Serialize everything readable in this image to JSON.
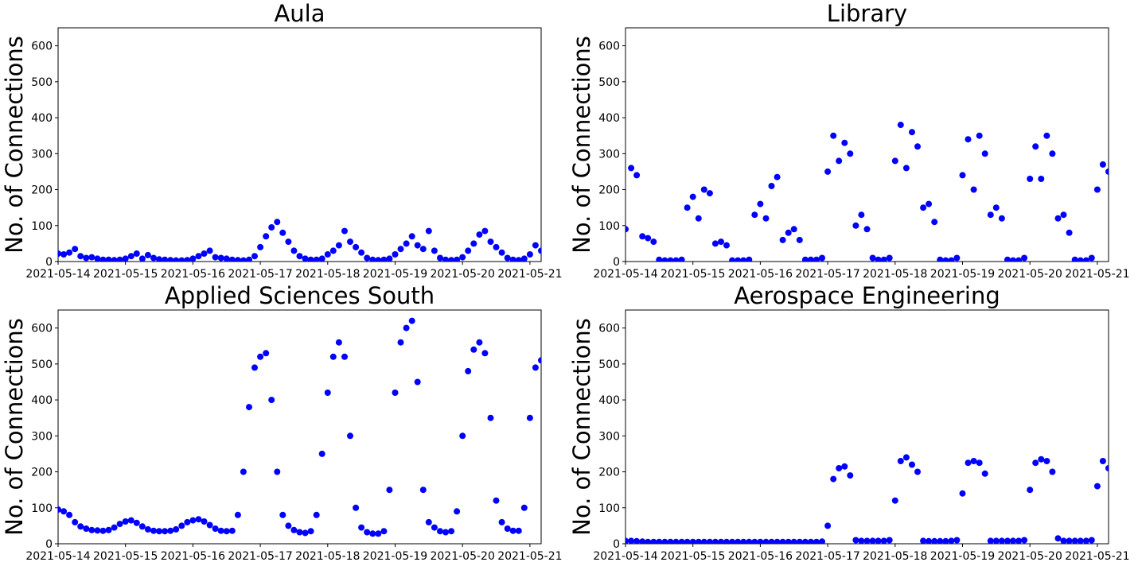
{
  "colors": {
    "points": "#0000ff",
    "axes": "#000000",
    "background": "#ffffff"
  },
  "chart_data": [
    {
      "type": "scatter",
      "title": "Aula",
      "ylabel": "No. of Connections",
      "xlim": [
        "2021-05-14T00:00",
        "2021-05-21T04:00"
      ],
      "ylim": [
        0,
        650
      ],
      "x_ticks": [
        "2021-05-14",
        "2021-05-15",
        "2021-05-16",
        "2021-05-17",
        "2021-05-18",
        "2021-05-19",
        "2021-05-20",
        "2021-05-21"
      ],
      "y_ticks": [
        0,
        100,
        200,
        300,
        400,
        500,
        600
      ],
      "series": [
        {
          "x": [
            "2021-05-14T00:00",
            "2021-05-14T02:00",
            "2021-05-14T04:00",
            "2021-05-14T06:00",
            "2021-05-14T08:00",
            "2021-05-14T10:00",
            "2021-05-14T12:00",
            "2021-05-14T14:00",
            "2021-05-14T16:00",
            "2021-05-14T18:00",
            "2021-05-14T20:00",
            "2021-05-14T22:00",
            "2021-05-15T00:00",
            "2021-05-15T02:00",
            "2021-05-15T04:00",
            "2021-05-15T06:00",
            "2021-05-15T08:00",
            "2021-05-15T10:00",
            "2021-05-15T12:00",
            "2021-05-15T14:00",
            "2021-05-15T16:00",
            "2021-05-15T18:00",
            "2021-05-15T20:00",
            "2021-05-15T22:00",
            "2021-05-16T00:00",
            "2021-05-16T02:00",
            "2021-05-16T04:00",
            "2021-05-16T06:00",
            "2021-05-16T08:00",
            "2021-05-16T10:00",
            "2021-05-16T12:00",
            "2021-05-16T14:00",
            "2021-05-16T16:00",
            "2021-05-16T18:00",
            "2021-05-16T20:00",
            "2021-05-16T22:00",
            "2021-05-17T00:00",
            "2021-05-17T02:00",
            "2021-05-17T04:00",
            "2021-05-17T06:00",
            "2021-05-17T08:00",
            "2021-05-17T10:00",
            "2021-05-17T12:00",
            "2021-05-17T14:00",
            "2021-05-17T16:00",
            "2021-05-17T18:00",
            "2021-05-17T20:00",
            "2021-05-17T22:00",
            "2021-05-18T00:00",
            "2021-05-18T02:00",
            "2021-05-18T04:00",
            "2021-05-18T06:00",
            "2021-05-18T08:00",
            "2021-05-18T10:00",
            "2021-05-18T12:00",
            "2021-05-18T14:00",
            "2021-05-18T16:00",
            "2021-05-18T18:00",
            "2021-05-18T20:00",
            "2021-05-18T22:00",
            "2021-05-19T00:00",
            "2021-05-19T02:00",
            "2021-05-19T04:00",
            "2021-05-19T06:00",
            "2021-05-19T08:00",
            "2021-05-19T10:00",
            "2021-05-19T12:00",
            "2021-05-19T14:00",
            "2021-05-19T16:00",
            "2021-05-19T18:00",
            "2021-05-19T20:00",
            "2021-05-19T22:00",
            "2021-05-20T00:00",
            "2021-05-20T02:00",
            "2021-05-20T04:00",
            "2021-05-20T06:00",
            "2021-05-20T08:00",
            "2021-05-20T10:00",
            "2021-05-20T12:00",
            "2021-05-20T14:00",
            "2021-05-20T16:00",
            "2021-05-20T18:00",
            "2021-05-20T20:00",
            "2021-05-20T22:00",
            "2021-05-21T00:00",
            "2021-05-21T02:00",
            "2021-05-21T04:00"
          ],
          "y": [
            22,
            20,
            25,
            35,
            15,
            10,
            12,
            8,
            5,
            5,
            4,
            5,
            8,
            15,
            22,
            8,
            18,
            10,
            6,
            5,
            4,
            3,
            3,
            4,
            8,
            15,
            22,
            30,
            12,
            10,
            8,
            5,
            4,
            3,
            5,
            15,
            40,
            70,
            95,
            110,
            80,
            55,
            30,
            15,
            8,
            5,
            5,
            8,
            20,
            30,
            45,
            85,
            55,
            40,
            25,
            10,
            5,
            4,
            5,
            8,
            20,
            35,
            50,
            70,
            45,
            35,
            85,
            30,
            10,
            5,
            4,
            5,
            12,
            30,
            50,
            75,
            85,
            55,
            40,
            25,
            10,
            5,
            4,
            8,
            20,
            45,
            30
          ]
        }
      ]
    },
    {
      "type": "scatter",
      "title": "Library",
      "ylabel": "No. of Connections",
      "xlim": [
        "2021-05-14T00:00",
        "2021-05-21T04:00"
      ],
      "ylim": [
        0,
        650
      ],
      "x_ticks": [
        "2021-05-14",
        "2021-05-15",
        "2021-05-16",
        "2021-05-17",
        "2021-05-18",
        "2021-05-19",
        "2021-05-20",
        "2021-05-21"
      ],
      "y_ticks": [
        0,
        100,
        200,
        300,
        400,
        500,
        600
      ],
      "series": [
        {
          "x": [
            "2021-05-14T00:00",
            "2021-05-14T02:00",
            "2021-05-14T04:00",
            "2021-05-14T06:00",
            "2021-05-14T08:00",
            "2021-05-14T10:00",
            "2021-05-14T12:00",
            "2021-05-14T14:00",
            "2021-05-14T16:00",
            "2021-05-14T18:00",
            "2021-05-14T20:00",
            "2021-05-14T22:00",
            "2021-05-15T00:00",
            "2021-05-15T02:00",
            "2021-05-15T04:00",
            "2021-05-15T06:00",
            "2021-05-15T08:00",
            "2021-05-15T10:00",
            "2021-05-15T12:00",
            "2021-05-15T14:00",
            "2021-05-15T16:00",
            "2021-05-15T18:00",
            "2021-05-15T20:00",
            "2021-05-15T22:00",
            "2021-05-16T00:00",
            "2021-05-16T02:00",
            "2021-05-16T04:00",
            "2021-05-16T06:00",
            "2021-05-16T08:00",
            "2021-05-16T10:00",
            "2021-05-16T12:00",
            "2021-05-16T14:00",
            "2021-05-16T16:00",
            "2021-05-16T18:00",
            "2021-05-16T20:00",
            "2021-05-16T22:00",
            "2021-05-17T00:00",
            "2021-05-17T02:00",
            "2021-05-17T04:00",
            "2021-05-17T06:00",
            "2021-05-17T08:00",
            "2021-05-17T10:00",
            "2021-05-17T12:00",
            "2021-05-17T14:00",
            "2021-05-17T16:00",
            "2021-05-17T18:00",
            "2021-05-17T20:00",
            "2021-05-17T22:00",
            "2021-05-18T00:00",
            "2021-05-18T02:00",
            "2021-05-18T04:00",
            "2021-05-18T06:00",
            "2021-05-18T08:00",
            "2021-05-18T10:00",
            "2021-05-18T12:00",
            "2021-05-18T14:00",
            "2021-05-18T16:00",
            "2021-05-18T18:00",
            "2021-05-18T20:00",
            "2021-05-18T22:00",
            "2021-05-19T00:00",
            "2021-05-19T02:00",
            "2021-05-19T04:00",
            "2021-05-19T06:00",
            "2021-05-19T08:00",
            "2021-05-19T10:00",
            "2021-05-19T12:00",
            "2021-05-19T14:00",
            "2021-05-19T16:00",
            "2021-05-19T18:00",
            "2021-05-19T20:00",
            "2021-05-19T22:00",
            "2021-05-20T00:00",
            "2021-05-20T02:00",
            "2021-05-20T04:00",
            "2021-05-20T06:00",
            "2021-05-20T08:00",
            "2021-05-20T10:00",
            "2021-05-20T12:00",
            "2021-05-20T14:00",
            "2021-05-20T16:00",
            "2021-05-20T18:00",
            "2021-05-20T20:00",
            "2021-05-20T22:00",
            "2021-05-21T00:00",
            "2021-05-21T02:00",
            "2021-05-21T04:00"
          ],
          "y": [
            90,
            260,
            240,
            70,
            65,
            55,
            5,
            3,
            3,
            3,
            5,
            150,
            180,
            120,
            200,
            190,
            50,
            55,
            45,
            3,
            3,
            3,
            5,
            130,
            160,
            120,
            210,
            235,
            60,
            80,
            90,
            60,
            5,
            5,
            5,
            10,
            250,
            350,
            280,
            330,
            300,
            100,
            130,
            90,
            10,
            5,
            5,
            10,
            280,
            380,
            260,
            360,
            320,
            150,
            160,
            110,
            5,
            3,
            3,
            10,
            240,
            340,
            200,
            350,
            300,
            130,
            150,
            120,
            5,
            3,
            3,
            10,
            230,
            320,
            230,
            350,
            300,
            120,
            130,
            80,
            5,
            3,
            3,
            10,
            200,
            270,
            250
          ]
        }
      ]
    },
    {
      "type": "scatter",
      "title": "Applied Sciences South",
      "ylabel": "No. of Connections",
      "xlim": [
        "2021-05-14T00:00",
        "2021-05-21T04:00"
      ],
      "ylim": [
        0,
        650
      ],
      "x_ticks": [
        "2021-05-14",
        "2021-05-15",
        "2021-05-16",
        "2021-05-17",
        "2021-05-18",
        "2021-05-19",
        "2021-05-20",
        "2021-05-21"
      ],
      "y_ticks": [
        0,
        100,
        200,
        300,
        400,
        500,
        600
      ],
      "series": [
        {
          "x": [
            "2021-05-14T00:00",
            "2021-05-14T02:00",
            "2021-05-14T04:00",
            "2021-05-14T06:00",
            "2021-05-14T08:00",
            "2021-05-14T10:00",
            "2021-05-14T12:00",
            "2021-05-14T14:00",
            "2021-05-14T16:00",
            "2021-05-14T18:00",
            "2021-05-14T20:00",
            "2021-05-14T22:00",
            "2021-05-15T00:00",
            "2021-05-15T02:00",
            "2021-05-15T04:00",
            "2021-05-15T06:00",
            "2021-05-15T08:00",
            "2021-05-15T10:00",
            "2021-05-15T12:00",
            "2021-05-15T14:00",
            "2021-05-15T16:00",
            "2021-05-15T18:00",
            "2021-05-15T20:00",
            "2021-05-15T22:00",
            "2021-05-16T00:00",
            "2021-05-16T02:00",
            "2021-05-16T04:00",
            "2021-05-16T06:00",
            "2021-05-16T08:00",
            "2021-05-16T10:00",
            "2021-05-16T12:00",
            "2021-05-16T14:00",
            "2021-05-16T16:00",
            "2021-05-16T18:00",
            "2021-05-16T20:00",
            "2021-05-16T22:00",
            "2021-05-17T00:00",
            "2021-05-17T02:00",
            "2021-05-17T04:00",
            "2021-05-17T06:00",
            "2021-05-17T08:00",
            "2021-05-17T10:00",
            "2021-05-17T12:00",
            "2021-05-17T14:00",
            "2021-05-17T16:00",
            "2021-05-17T18:00",
            "2021-05-17T20:00",
            "2021-05-17T22:00",
            "2021-05-18T00:00",
            "2021-05-18T02:00",
            "2021-05-18T04:00",
            "2021-05-18T06:00",
            "2021-05-18T08:00",
            "2021-05-18T10:00",
            "2021-05-18T12:00",
            "2021-05-18T14:00",
            "2021-05-18T16:00",
            "2021-05-18T18:00",
            "2021-05-18T20:00",
            "2021-05-18T22:00",
            "2021-05-19T00:00",
            "2021-05-19T02:00",
            "2021-05-19T04:00",
            "2021-05-19T06:00",
            "2021-05-19T08:00",
            "2021-05-19T10:00",
            "2021-05-19T12:00",
            "2021-05-19T14:00",
            "2021-05-19T16:00",
            "2021-05-19T18:00",
            "2021-05-19T20:00",
            "2021-05-19T22:00",
            "2021-05-20T00:00",
            "2021-05-20T02:00",
            "2021-05-20T04:00",
            "2021-05-20T06:00",
            "2021-05-20T08:00",
            "2021-05-20T10:00",
            "2021-05-20T12:00",
            "2021-05-20T14:00",
            "2021-05-20T16:00",
            "2021-05-20T18:00",
            "2021-05-20T20:00",
            "2021-05-20T22:00",
            "2021-05-21T00:00",
            "2021-05-21T02:00",
            "2021-05-21T04:00"
          ],
          "y": [
            95,
            90,
            80,
            60,
            48,
            42,
            38,
            37,
            36,
            38,
            45,
            55,
            62,
            65,
            58,
            48,
            40,
            36,
            35,
            35,
            36,
            40,
            50,
            60,
            65,
            68,
            62,
            52,
            42,
            36,
            35,
            36,
            80,
            200,
            380,
            490,
            520,
            530,
            400,
            200,
            80,
            50,
            38,
            32,
            30,
            35,
            80,
            250,
            420,
            520,
            560,
            520,
            300,
            100,
            45,
            32,
            28,
            28,
            35,
            150,
            420,
            560,
            600,
            620,
            450,
            150,
            60,
            45,
            35,
            32,
            35,
            90,
            300,
            480,
            540,
            560,
            530,
            350,
            120,
            60,
            42,
            36,
            36,
            100,
            350,
            490,
            510
          ]
        }
      ]
    },
    {
      "type": "scatter",
      "title": "Aerospace Engineering",
      "ylabel": "No. of Connections",
      "xlim": [
        "2021-05-14T00:00",
        "2021-05-21T04:00"
      ],
      "ylim": [
        0,
        650
      ],
      "x_ticks": [
        "2021-05-14",
        "2021-05-15",
        "2021-05-16",
        "2021-05-17",
        "2021-05-18",
        "2021-05-19",
        "2021-05-20",
        "2021-05-21"
      ],
      "y_ticks": [
        0,
        100,
        200,
        300,
        400,
        500,
        600
      ],
      "series": [
        {
          "x": [
            "2021-05-14T00:00",
            "2021-05-14T02:00",
            "2021-05-14T04:00",
            "2021-05-14T06:00",
            "2021-05-14T08:00",
            "2021-05-14T10:00",
            "2021-05-14T12:00",
            "2021-05-14T14:00",
            "2021-05-14T16:00",
            "2021-05-14T18:00",
            "2021-05-14T20:00",
            "2021-05-14T22:00",
            "2021-05-15T00:00",
            "2021-05-15T02:00",
            "2021-05-15T04:00",
            "2021-05-15T06:00",
            "2021-05-15T08:00",
            "2021-05-15T10:00",
            "2021-05-15T12:00",
            "2021-05-15T14:00",
            "2021-05-15T16:00",
            "2021-05-15T18:00",
            "2021-05-15T20:00",
            "2021-05-15T22:00",
            "2021-05-16T00:00",
            "2021-05-16T02:00",
            "2021-05-16T04:00",
            "2021-05-16T06:00",
            "2021-05-16T08:00",
            "2021-05-16T10:00",
            "2021-05-16T12:00",
            "2021-05-16T14:00",
            "2021-05-16T16:00",
            "2021-05-16T18:00",
            "2021-05-16T20:00",
            "2021-05-16T22:00",
            "2021-05-17T00:00",
            "2021-05-17T02:00",
            "2021-05-17T04:00",
            "2021-05-17T06:00",
            "2021-05-17T08:00",
            "2021-05-17T10:00",
            "2021-05-17T12:00",
            "2021-05-17T14:00",
            "2021-05-17T16:00",
            "2021-05-17T18:00",
            "2021-05-17T20:00",
            "2021-05-17T22:00",
            "2021-05-18T00:00",
            "2021-05-18T02:00",
            "2021-05-18T04:00",
            "2021-05-18T06:00",
            "2021-05-18T08:00",
            "2021-05-18T10:00",
            "2021-05-18T12:00",
            "2021-05-18T14:00",
            "2021-05-18T16:00",
            "2021-05-18T18:00",
            "2021-05-18T20:00",
            "2021-05-18T22:00",
            "2021-05-19T00:00",
            "2021-05-19T02:00",
            "2021-05-19T04:00",
            "2021-05-19T06:00",
            "2021-05-19T08:00",
            "2021-05-19T10:00",
            "2021-05-19T12:00",
            "2021-05-19T14:00",
            "2021-05-19T16:00",
            "2021-05-19T18:00",
            "2021-05-19T20:00",
            "2021-05-19T22:00",
            "2021-05-20T00:00",
            "2021-05-20T02:00",
            "2021-05-20T04:00",
            "2021-05-20T06:00",
            "2021-05-20T08:00",
            "2021-05-20T10:00",
            "2021-05-20T12:00",
            "2021-05-20T14:00",
            "2021-05-20T16:00",
            "2021-05-20T18:00",
            "2021-05-20T20:00",
            "2021-05-20T22:00",
            "2021-05-21T00:00",
            "2021-05-21T02:00",
            "2021-05-21T04:00"
          ],
          "y": [
            8,
            8,
            7,
            6,
            5,
            5,
            5,
            5,
            5,
            5,
            5,
            5,
            5,
            5,
            5,
            5,
            5,
            5,
            5,
            5,
            5,
            5,
            5,
            5,
            5,
            5,
            5,
            5,
            5,
            5,
            5,
            5,
            5,
            5,
            5,
            6,
            50,
            180,
            210,
            215,
            190,
            10,
            8,
            8,
            8,
            8,
            8,
            10,
            120,
            230,
            240,
            220,
            200,
            8,
            7,
            7,
            7,
            7,
            8,
            10,
            140,
            225,
            230,
            225,
            195,
            8,
            8,
            8,
            8,
            8,
            8,
            10,
            150,
            225,
            235,
            230,
            200,
            15,
            8,
            8,
            8,
            8,
            8,
            10,
            160,
            230,
            210
          ]
        }
      ]
    }
  ]
}
